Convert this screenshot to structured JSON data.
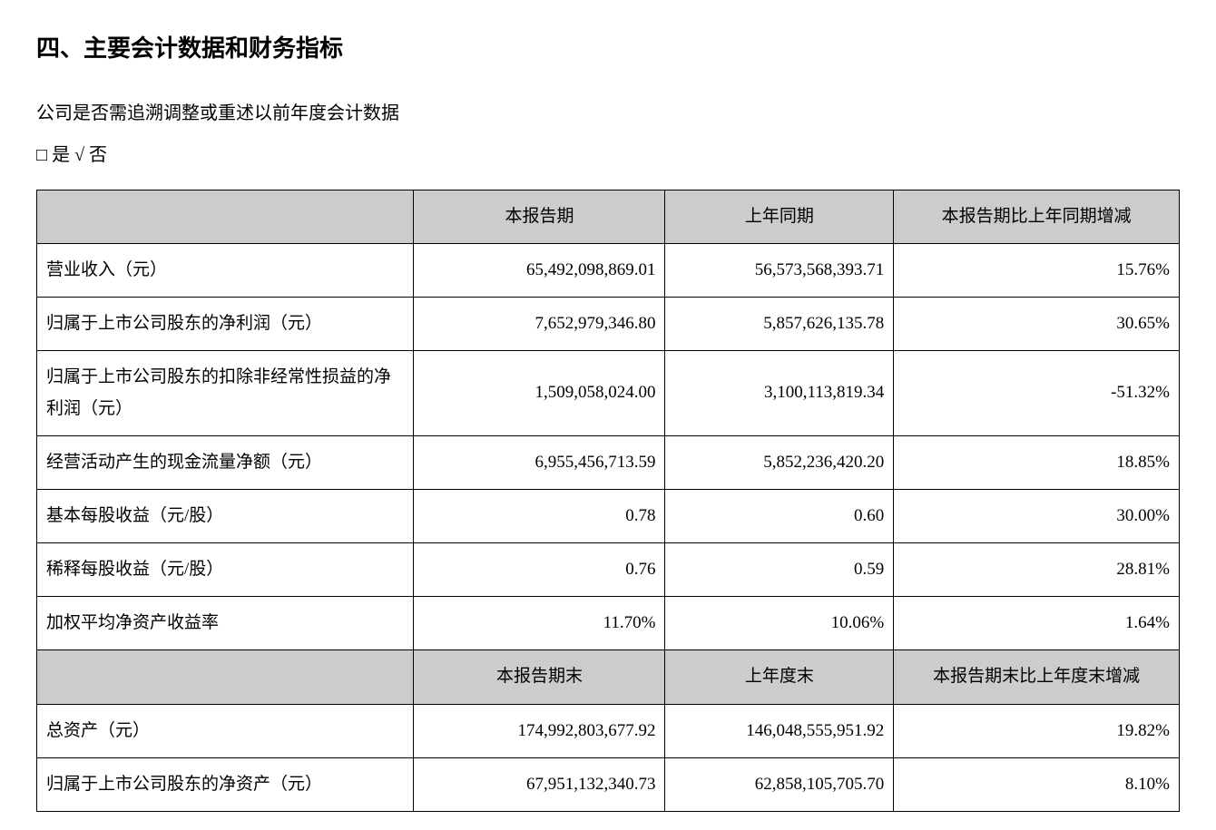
{
  "heading": "四、主要会计数据和财务指标",
  "question": "公司是否需追溯调整或重述以前年度会计数据",
  "checkbox_line": "□ 是 √ 否",
  "table": {
    "columns": [
      "",
      "本报告期",
      "上年同期",
      "本报告期比上年同期增减"
    ],
    "columns2": [
      "",
      "本报告期末",
      "上年度末",
      "本报告期末比上年度末增减"
    ],
    "rows1": [
      {
        "label": "营业收入（元）",
        "c1": "65,492,098,869.01",
        "c2": "56,573,568,393.71",
        "c3": "15.76%"
      },
      {
        "label": "归属于上市公司股东的净利润（元）",
        "c1": "7,652,979,346.80",
        "c2": "5,857,626,135.78",
        "c3": "30.65%"
      },
      {
        "label": "归属于上市公司股东的扣除非经常性损益的净利润（元）",
        "c1": "1,509,058,024.00",
        "c2": "3,100,113,819.34",
        "c3": "-51.32%"
      },
      {
        "label": "经营活动产生的现金流量净额（元）",
        "c1": "6,955,456,713.59",
        "c2": "5,852,236,420.20",
        "c3": "18.85%"
      },
      {
        "label": "基本每股收益（元/股）",
        "c1": "0.78",
        "c2": "0.60",
        "c3": "30.00%"
      },
      {
        "label": "稀释每股收益（元/股）",
        "c1": "0.76",
        "c2": "0.59",
        "c3": "28.81%"
      },
      {
        "label": "加权平均净资产收益率",
        "c1": "11.70%",
        "c2": "10.06%",
        "c3": "1.64%"
      }
    ],
    "rows2": [
      {
        "label": "总资产（元）",
        "c1": "174,992,803,677.92",
        "c2": "146,048,555,951.92",
        "c3": "19.82%"
      },
      {
        "label": "归属于上市公司股东的净资产（元）",
        "c1": "67,951,132,340.73",
        "c2": "62,858,105,705.70",
        "c3": "8.10%"
      }
    ],
    "header_bg": "#cccccc",
    "border_color": "#000000",
    "body_fontsize": 19,
    "heading_fontsize": 26
  }
}
